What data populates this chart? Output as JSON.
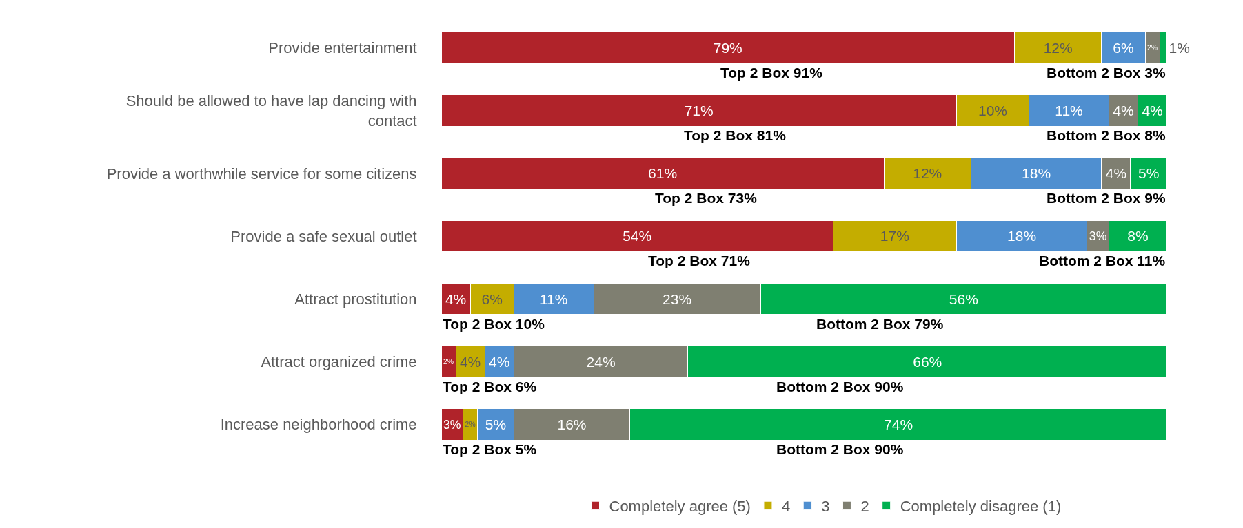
{
  "chart_data": {
    "type": "bar",
    "orientation": "horizontal",
    "stacked": true,
    "tick_labels": "y",
    "grid": false,
    "legend": "bottom",
    "categories": [
      "Provide entertainment",
      "Should be allowed to have lap dancing with contact",
      "Provide a worthwhile service for some citizens",
      "Provide a safe sexual outlet",
      "Attract prostitution",
      "Attract organized crime",
      "Increase neighborhood crime"
    ],
    "series": [
      {
        "name": "Completely agree (5)",
        "color": "#b0232a",
        "values": [
          79,
          71,
          61,
          54,
          4,
          2,
          3
        ],
        "value_labels": [
          "79%",
          "71%",
          "61%",
          "54%",
          "4%",
          "2%",
          "3%"
        ]
      },
      {
        "name": "4",
        "color": "#c4ad00",
        "values": [
          12,
          10,
          12,
          17,
          6,
          4,
          2
        ],
        "value_labels": [
          "12%",
          "10%",
          "12%",
          "17%",
          "6%",
          "4%",
          "2%"
        ]
      },
      {
        "name": "3",
        "color": "#4f8fd0",
        "values": [
          6,
          11,
          18,
          18,
          11,
          4,
          5
        ],
        "value_labels": [
          "6%",
          "11%",
          "18%",
          "18%",
          "11%",
          "4%",
          "5%"
        ]
      },
      {
        "name": "2",
        "color": "#7f7f71",
        "values": [
          2,
          4,
          4,
          3,
          23,
          24,
          16
        ],
        "value_labels": [
          "2%",
          "4%",
          "4%",
          "3%",
          "23%",
          "24%",
          "16%"
        ]
      },
      {
        "name": "Completely disagree (1)",
        "color": "#00b050",
        "values": [
          1,
          4,
          5,
          8,
          56,
          66,
          74
        ],
        "value_labels": [
          "1%",
          "4%",
          "5%",
          "8%",
          "56%",
          "66%",
          "74%"
        ]
      }
    ],
    "annotations": [
      "Top 2 Box 91%",
      "Bottom 2 Box 3%",
      "Top 2 Box 81%",
      "Bottom 2 Box 8%",
      "Top 2 Box 73%",
      "Bottom 2 Box 9%",
      "Top 2 Box 71%",
      "Bottom 2 Box 11%",
      "Top 2 Box 10%",
      "Bottom 2 Box 79%",
      "Top 2 Box 6%",
      "Bottom 2 Box 90%",
      "Top 2 Box 5%",
      "Bottom 2 Box 90%"
    ]
  }
}
